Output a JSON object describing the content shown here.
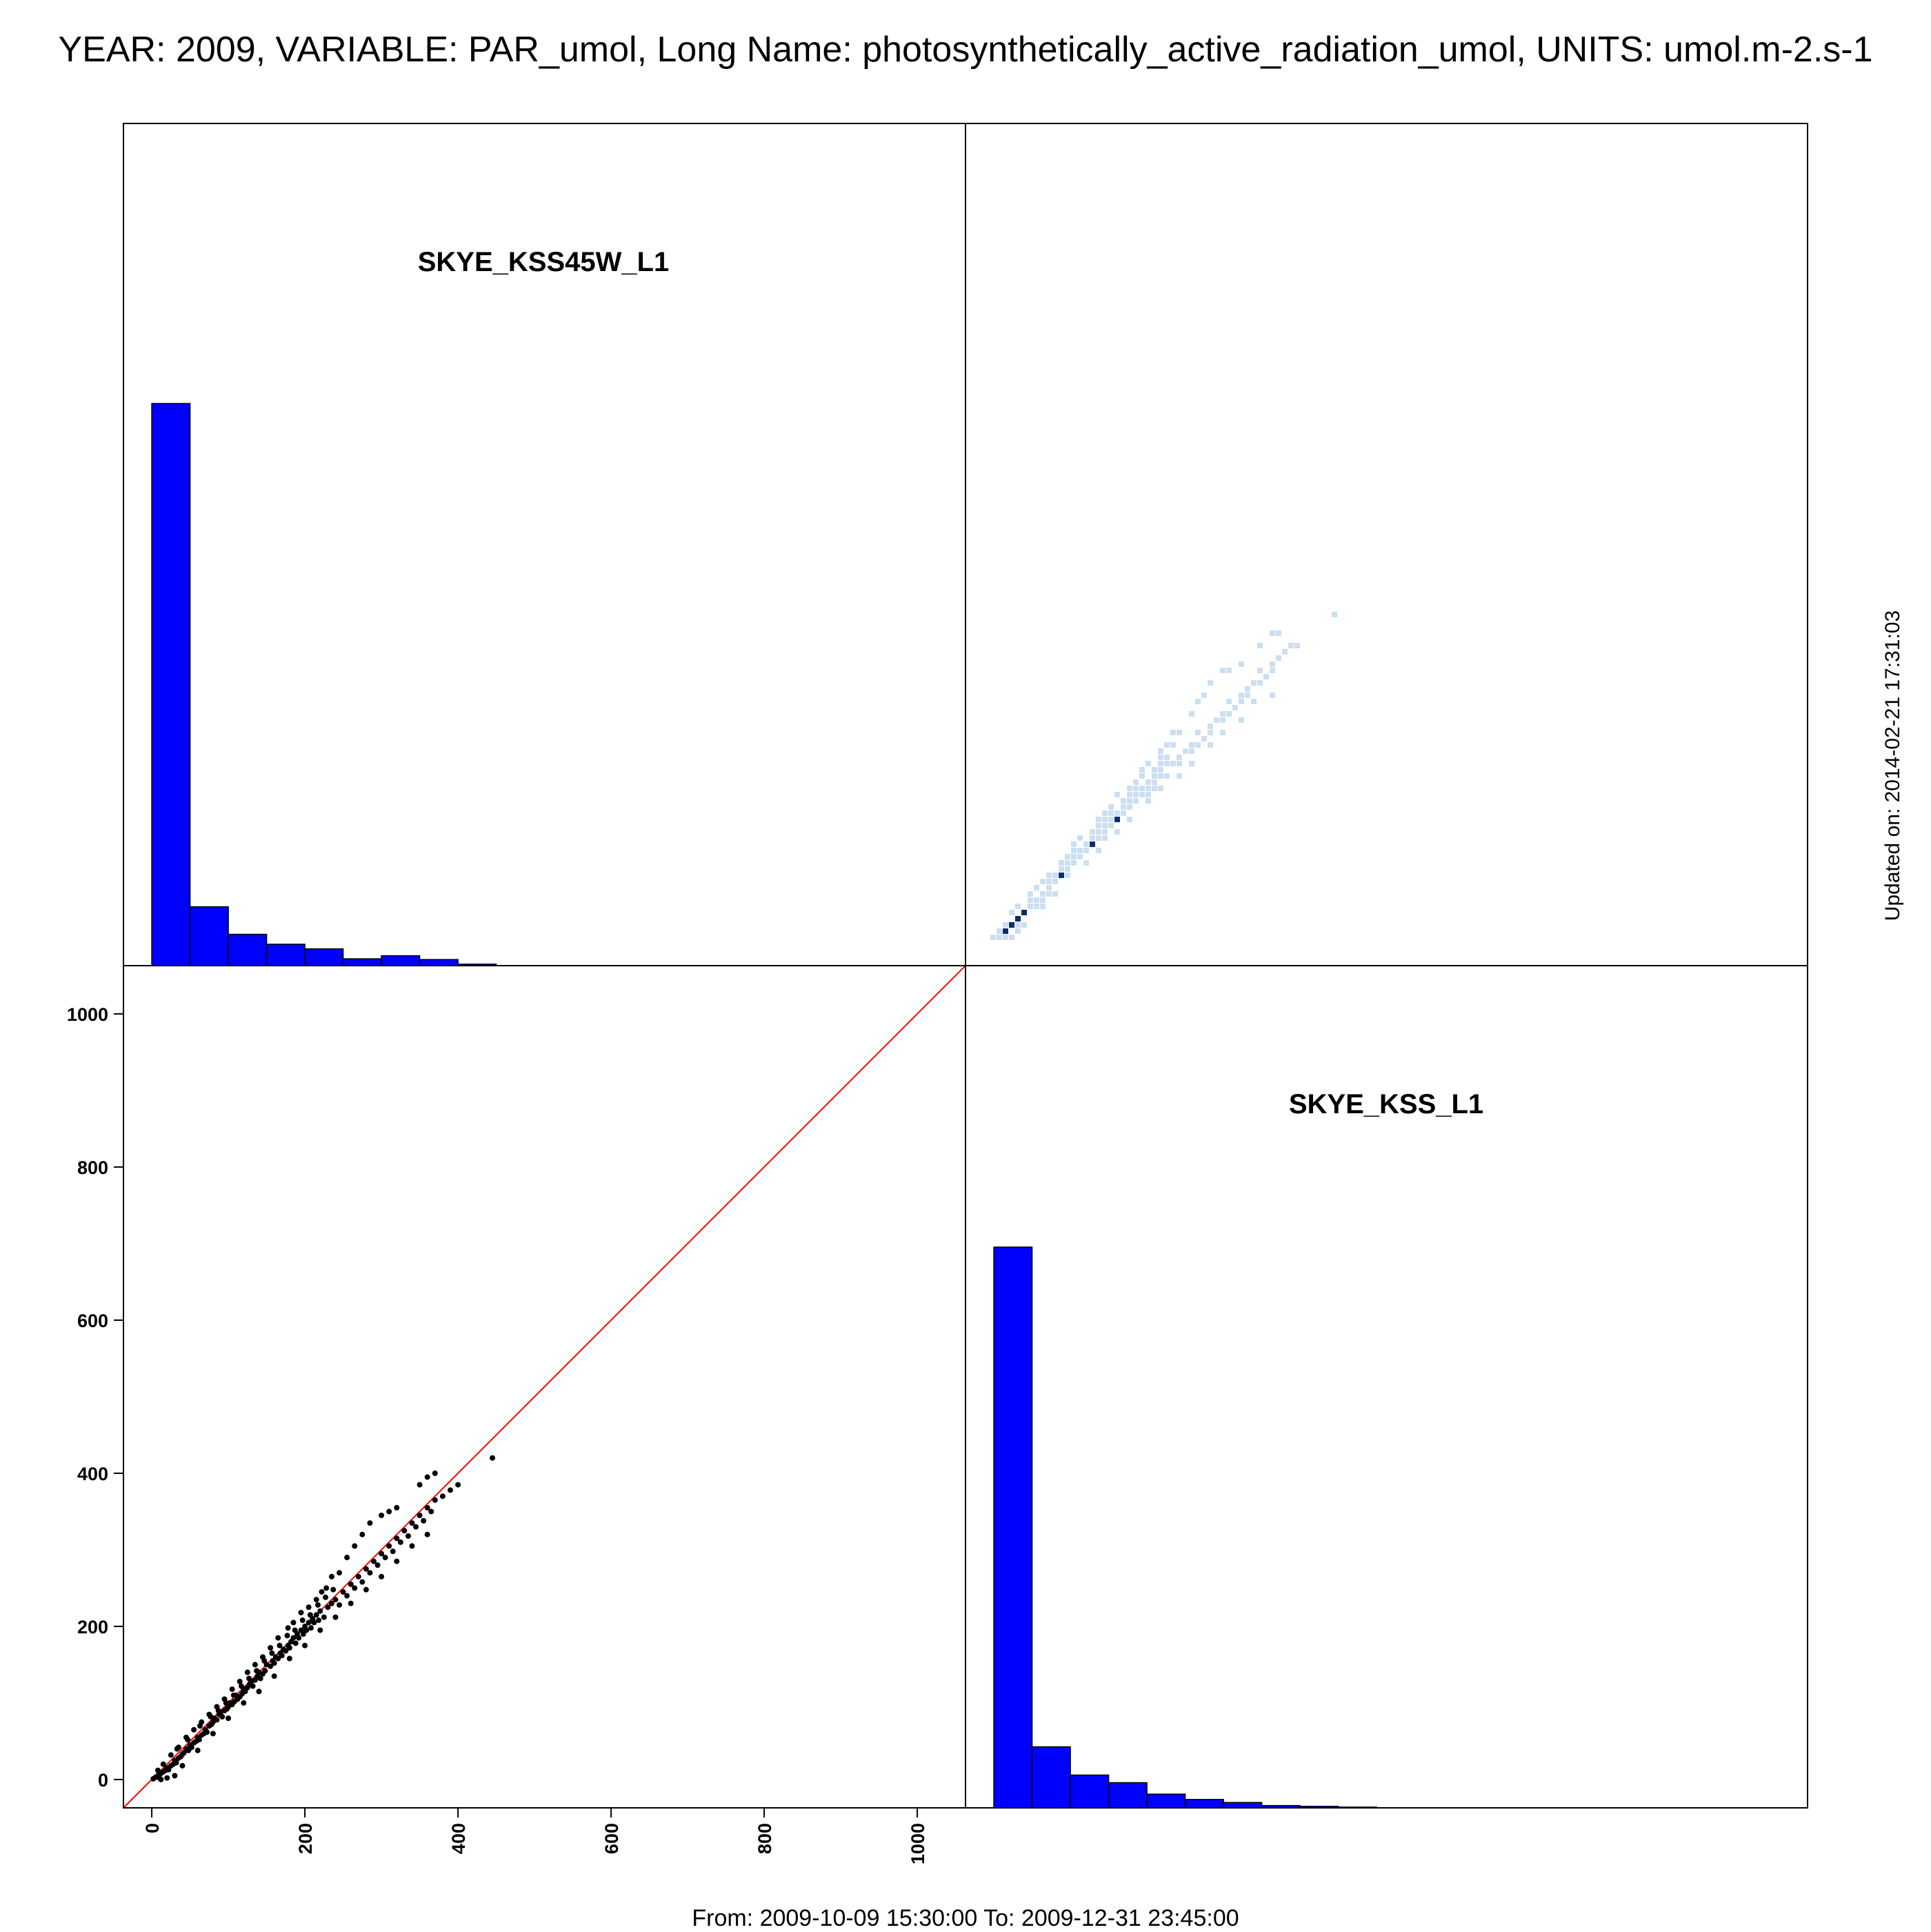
{
  "header": {
    "title": "YEAR: 2009, VARIABLE: PAR_umol, Long Name: photosynthetically_active_radiation_umol, UNITS: umol.m-2.s-1"
  },
  "footer": {
    "range": "From: 2009-10-09 15:30:00 To: 2009-12-31 23:45:00"
  },
  "side": {
    "updated": "Updated on: 2014-02-21 17:31:03"
  },
  "colors": {
    "histogram_fill": "#0000ff",
    "scatter_points": "#000000",
    "identity_line": "#ff0000",
    "density_light": "#c6dbef",
    "density_dark": "#08306b"
  },
  "chart_data": [
    {
      "type": "bar",
      "panel": "top-left",
      "title": "SKYE_KSS45W_L1",
      "bin_edges": [
        0,
        50,
        100,
        150,
        200,
        250,
        300,
        350,
        400,
        450
      ],
      "values": [
        735,
        77,
        41,
        28,
        22,
        9,
        13,
        8,
        2
      ],
      "xlim": [
        -37,
        1063
      ]
    },
    {
      "type": "heatmap",
      "panel": "top-right",
      "title": "",
      "note": "hexbin density of the same pairs as the bottom-left scatter (x = SKYE_KSS_L1, y = SKYE_KSS45W_L1)",
      "xlim": [
        -37,
        1063
      ],
      "ylim": [
        -37,
        1063
      ]
    },
    {
      "type": "scatter",
      "panel": "bottom-left",
      "title": "",
      "xlabel": "",
      "ylabel": "",
      "xlim": [
        -37,
        1063
      ],
      "ylim": [
        -37,
        1063
      ],
      "xticks": [
        "0",
        "200",
        "400",
        "600",
        "800",
        "1000"
      ],
      "yticks": [
        "0",
        "200",
        "400",
        "600",
        "800",
        "1000"
      ],
      "reference_line": {
        "type": "identity",
        "slope": 1,
        "intercept": 0
      },
      "points": [
        [
          2,
          1
        ],
        [
          5,
          3
        ],
        [
          8,
          5
        ],
        [
          10,
          2
        ],
        [
          12,
          8
        ],
        [
          15,
          10
        ],
        [
          18,
          12
        ],
        [
          20,
          15
        ],
        [
          22,
          13
        ],
        [
          25,
          18
        ],
        [
          28,
          20
        ],
        [
          30,
          25
        ],
        [
          32,
          22
        ],
        [
          35,
          28
        ],
        [
          38,
          30
        ],
        [
          40,
          33
        ],
        [
          42,
          35
        ],
        [
          45,
          40
        ],
        [
          48,
          38
        ],
        [
          50,
          45
        ],
        [
          52,
          42
        ],
        [
          55,
          48
        ],
        [
          58,
          50
        ],
        [
          60,
          55
        ],
        [
          62,
          52
        ],
        [
          65,
          58
        ],
        [
          68,
          60
        ],
        [
          70,
          65
        ],
        [
          72,
          62
        ],
        [
          75,
          70
        ],
        [
          78,
          72
        ],
        [
          80,
          75
        ],
        [
          82,
          80
        ],
        [
          85,
          78
        ],
        [
          88,
          85
        ],
        [
          90,
          88
        ],
        [
          92,
          82
        ],
        [
          95,
          90
        ],
        [
          98,
          92
        ],
        [
          100,
          95
        ],
        [
          102,
          100
        ],
        [
          105,
          98
        ],
        [
          108,
          102
        ],
        [
          110,
          110
        ],
        [
          112,
          105
        ],
        [
          115,
          108
        ],
        [
          118,
          112
        ],
        [
          120,
          118
        ],
        [
          122,
          115
        ],
        [
          125,
          120
        ],
        [
          128,
          125
        ],
        [
          130,
          128
        ],
        [
          132,
          122
        ],
        [
          135,
          130
        ],
        [
          138,
          135
        ],
        [
          140,
          140
        ],
        [
          142,
          132
        ],
        [
          145,
          138
        ],
        [
          148,
          142
        ],
        [
          150,
          150
        ],
        [
          155,
          148
        ],
        [
          158,
          155
        ],
        [
          160,
          152
        ],
        [
          162,
          160
        ],
        [
          165,
          158
        ],
        [
          168,
          165
        ],
        [
          170,
          162
        ],
        [
          172,
          170
        ],
        [
          175,
          168
        ],
        [
          178,
          175
        ],
        [
          180,
          172
        ],
        [
          182,
          180
        ],
        [
          185,
          185
        ],
        [
          188,
          178
        ],
        [
          190,
          190
        ],
        [
          192,
          185
        ],
        [
          195,
          195
        ],
        [
          198,
          190
        ],
        [
          200,
          200
        ],
        [
          202,
          195
        ],
        [
          205,
          205
        ],
        [
          208,
          198
        ],
        [
          210,
          210
        ],
        [
          212,
          205
        ],
        [
          215,
          215
        ],
        [
          218,
          208
        ],
        [
          220,
          220
        ],
        [
          225,
          212
        ],
        [
          230,
          225
        ],
        [
          235,
          230
        ],
        [
          240,
          235
        ],
        [
          245,
          228
        ],
        [
          250,
          245
        ],
        [
          255,
          240
        ],
        [
          260,
          255
        ],
        [
          265,
          250
        ],
        [
          270,
          265
        ],
        [
          275,
          258
        ],
        [
          280,
          275
        ],
        [
          285,
          270
        ],
        [
          290,
          285
        ],
        [
          295,
          280
        ],
        [
          300,
          295
        ],
        [
          305,
          290
        ],
        [
          310,
          305
        ],
        [
          315,
          298
        ],
        [
          320,
          315
        ],
        [
          325,
          310
        ],
        [
          330,
          325
        ],
        [
          335,
          318
        ],
        [
          340,
          335
        ],
        [
          345,
          330
        ],
        [
          350,
          345
        ],
        [
          355,
          338
        ],
        [
          360,
          355
        ],
        [
          365,
          350
        ],
        [
          370,
          365
        ],
        [
          380,
          370
        ],
        [
          390,
          378
        ],
        [
          400,
          385
        ],
        [
          445,
          420
        ],
        [
          370,
          400
        ],
        [
          360,
          395
        ],
        [
          350,
          385
        ],
        [
          320,
          355
        ],
        [
          310,
          350
        ],
        [
          300,
          345
        ],
        [
          285,
          335
        ],
        [
          275,
          320
        ],
        [
          265,
          305
        ],
        [
          255,
          290
        ],
        [
          245,
          270
        ],
        [
          235,
          265
        ],
        [
          228,
          250
        ],
        [
          222,
          245
        ],
        [
          215,
          235
        ],
        [
          205,
          225
        ],
        [
          195,
          218
        ],
        [
          185,
          205
        ],
        [
          178,
          198
        ],
        [
          165,
          185
        ],
        [
          155,
          172
        ],
        [
          145,
          160
        ],
        [
          135,
          150
        ],
        [
          125,
          140
        ],
        [
          115,
          128
        ],
        [
          105,
          118
        ],
        [
          95,
          105
        ],
        [
          85,
          95
        ],
        [
          75,
          85
        ],
        [
          65,
          75
        ],
        [
          55,
          65
        ],
        [
          45,
          55
        ],
        [
          35,
          42
        ],
        [
          25,
          32
        ],
        [
          15,
          20
        ],
        [
          8,
          12
        ],
        [
          30,
          5
        ],
        [
          20,
          2
        ],
        [
          12,
          0
        ],
        [
          40,
          18
        ],
        [
          60,
          38
        ],
        [
          80,
          60
        ],
        [
          100,
          80
        ],
        [
          120,
          100
        ],
        [
          140,
          115
        ],
        [
          160,
          135
        ],
        [
          180,
          158
        ],
        [
          200,
          175
        ],
        [
          220,
          195
        ],
        [
          240,
          212
        ],
        [
          260,
          230
        ],
        [
          280,
          248
        ],
        [
          300,
          265
        ],
        [
          320,
          285
        ],
        [
          340,
          305
        ],
        [
          360,
          320
        ],
        [
          33,
          40
        ],
        [
          47,
          52
        ],
        [
          63,
          70
        ],
        [
          77,
          82
        ],
        [
          87,
          90
        ],
        [
          97,
          100
        ],
        [
          107,
          110
        ],
        [
          117,
          122
        ],
        [
          127,
          132
        ],
        [
          137,
          142
        ],
        [
          147,
          155
        ],
        [
          157,
          165
        ],
        [
          167,
          175
        ],
        [
          177,
          188
        ],
        [
          187,
          195
        ],
        [
          197,
          208
        ],
        [
          207,
          215
        ],
        [
          217,
          228
        ],
        [
          227,
          238
        ],
        [
          237,
          248
        ]
      ]
    },
    {
      "type": "bar",
      "panel": "bottom-right",
      "title": "SKYE_KSS_L1",
      "bin_edges": [
        0,
        50,
        100,
        150,
        200,
        250,
        300,
        350,
        400,
        450,
        500
      ],
      "values": [
        735,
        80,
        43,
        33,
        18,
        11,
        7,
        3,
        2,
        1
      ],
      "xlim": [
        -37,
        1063
      ]
    }
  ]
}
